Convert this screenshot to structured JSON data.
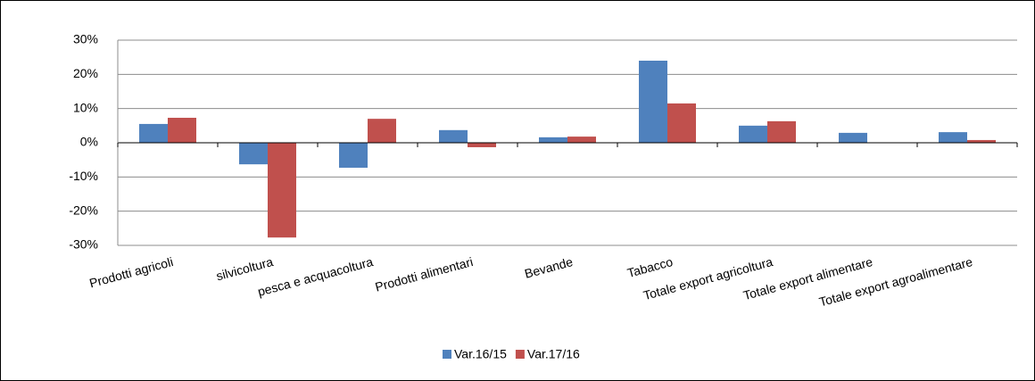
{
  "chart_data": {
    "type": "bar",
    "categories": [
      "Prodotti agricoli",
      "silvicoltura",
      "pesca e acquacoltura",
      "Prodotti alimentari",
      "Bevande",
      "Tabacco",
      "Totale export agricoltura",
      "Totale export alimentare",
      "Totale export agroalimentare"
    ],
    "series": [
      {
        "name": "Var.16/15",
        "color": "#4f81bd",
        "values": [
          5.5,
          -6.3,
          -7.3,
          3.7,
          1.6,
          24.0,
          5.0,
          2.9,
          3.1
        ]
      },
      {
        "name": "Var.17/16",
        "color": "#c0504d",
        "values": [
          7.3,
          -27.7,
          7.0,
          -1.3,
          1.8,
          11.5,
          6.3,
          0,
          0.8
        ]
      }
    ],
    "ylim": [
      -30,
      30
    ],
    "yticks": [
      {
        "value": -30,
        "label": "-30%"
      },
      {
        "value": -20,
        "label": "-20%"
      },
      {
        "value": -10,
        "label": "-10%"
      },
      {
        "value": 0,
        "label": "0%"
      },
      {
        "value": 10,
        "label": "10%"
      },
      {
        "value": 20,
        "label": "20%"
      },
      {
        "value": 30,
        "label": "30%"
      }
    ],
    "grid": true,
    "legend": "bottom"
  }
}
